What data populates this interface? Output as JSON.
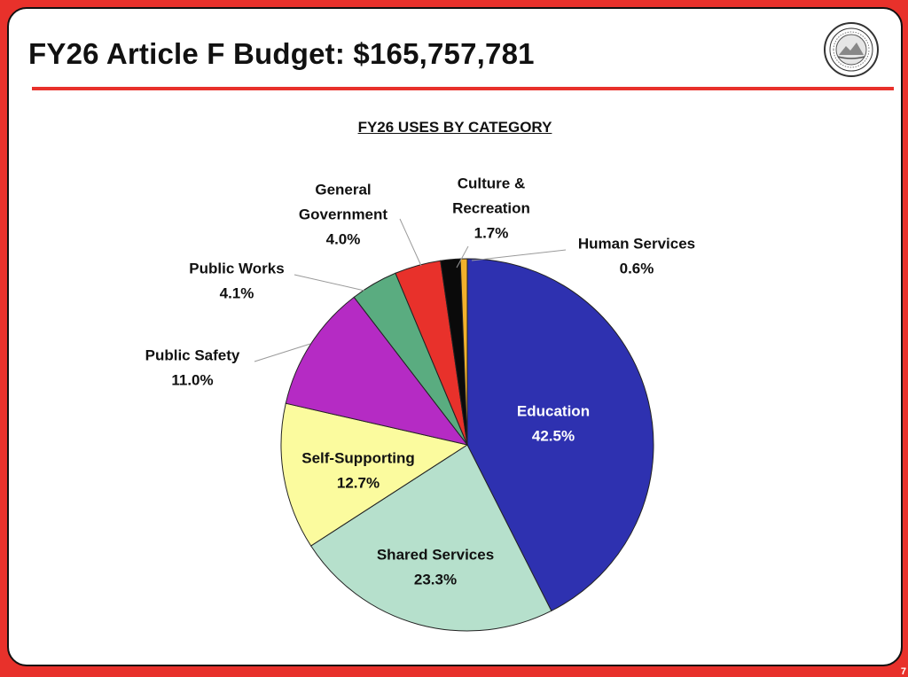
{
  "header": {
    "title": "FY26 Article F Budget: $165,757,781",
    "seal_text": "CHURCH COVE SCHOOL"
  },
  "footer": {
    "page_number": "7"
  },
  "colors": {
    "frame": "#e8312b",
    "title_rule": "#e8312b"
  },
  "chart_data": {
    "type": "pie",
    "title": "FY26 USES BY CATEGORY",
    "slices": [
      {
        "label": "Education",
        "value": 42.5,
        "value_label": "42.5%",
        "color": "#2e31b0",
        "label_color": "#ffffff",
        "label_placement": "inside"
      },
      {
        "label": "Shared Services",
        "value": 23.3,
        "value_label": "23.3%",
        "color": "#b6e0cc",
        "label_color": "#111111",
        "label_placement": "inside"
      },
      {
        "label": "Self-Supporting",
        "value": 12.7,
        "value_label": "12.7%",
        "color": "#fbfb9e",
        "label_color": "#111111",
        "label_placement": "inside"
      },
      {
        "label": "Public Safety",
        "value": 11.0,
        "value_label": "11.0%",
        "color": "#b52bc4",
        "label_color": "#111111",
        "label_placement": "outside"
      },
      {
        "label": "Public Works",
        "value": 4.1,
        "value_label": "4.1%",
        "color": "#5aac80",
        "label_color": "#111111",
        "label_placement": "outside"
      },
      {
        "label": "General Government",
        "value": 4.0,
        "value_label": "4.0%",
        "color": "#e8312b",
        "label_color": "#111111",
        "label_placement": "outside"
      },
      {
        "label": "Culture & Recreation",
        "value": 1.7,
        "value_label": "1.7%",
        "color": "#0a0a0a",
        "label_color": "#111111",
        "label_placement": "outside"
      },
      {
        "label": "Human Services",
        "value": 0.6,
        "value_label": "0.6%",
        "color": "#f3b12b",
        "label_color": "#111111",
        "label_placement": "outside"
      }
    ],
    "start": "12 o'clock",
    "direction": "clockwise",
    "legend": "none"
  }
}
